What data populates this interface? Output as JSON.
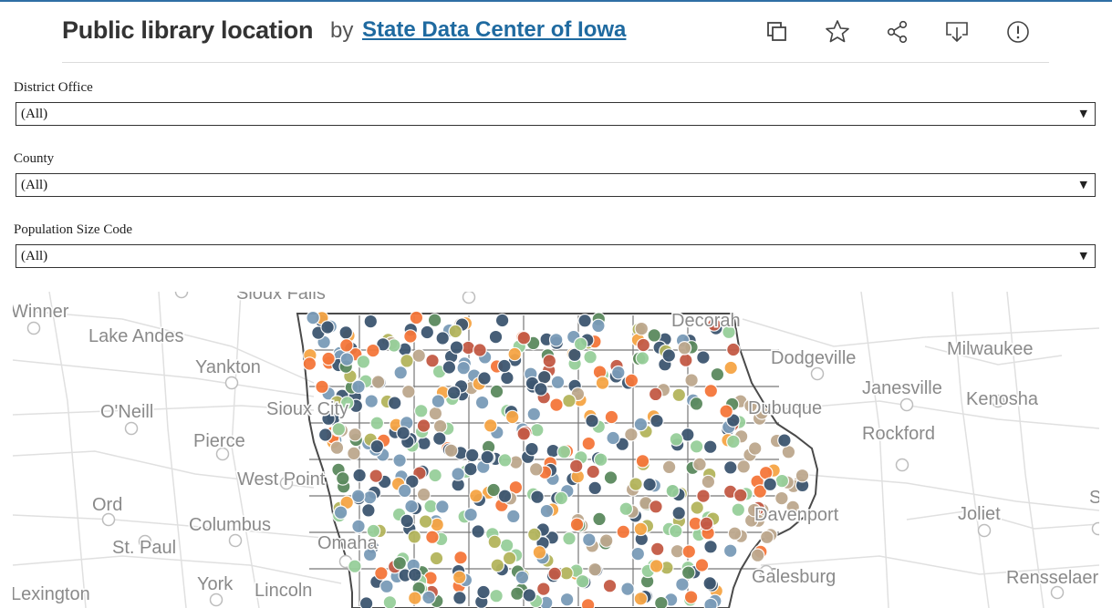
{
  "header": {
    "title": "Public library location",
    "by": "by",
    "author": "State Data Center of Iowa",
    "toolbar": [
      {
        "name": "duplicate-icon"
      },
      {
        "name": "favorite-star-icon"
      },
      {
        "name": "share-icon"
      },
      {
        "name": "download-icon"
      },
      {
        "name": "report-icon"
      }
    ]
  },
  "filters": [
    {
      "label": "District Office",
      "value": "(All)"
    },
    {
      "label": "County",
      "value": "(All)"
    },
    {
      "label": "Population Size Code",
      "value": "(All)"
    }
  ],
  "map": {
    "place_labels": [
      "Sioux Falls",
      "Winner",
      "Lake Andes",
      "Yankton",
      "O'Neill",
      "Pierce",
      "Sioux City",
      "West Point",
      "Ord",
      "Columbus",
      "St. Paul",
      "Omaha",
      "York",
      "Lincoln",
      "Lexington",
      "Decorah",
      "Dubuque",
      "Dodgeville",
      "Janesville",
      "Milwaukee",
      "Kenosha",
      "Rockford",
      "Davenport",
      "Joliet",
      "Galesburg",
      "Rensselaer",
      "Sc"
    ],
    "colors": {
      "dark_slate": "#3d5670",
      "steel_blue": "#7a9bb8",
      "light_green": "#97cf9a",
      "dark_green": "#5b8a5e",
      "olive": "#b4b55c",
      "orange": "#f5773a",
      "light_orange": "#f6a545",
      "tan": "#bda88e",
      "brick": "#c45a45",
      "road": "#e0e0e0",
      "boundary": "#4a4a4a"
    }
  }
}
